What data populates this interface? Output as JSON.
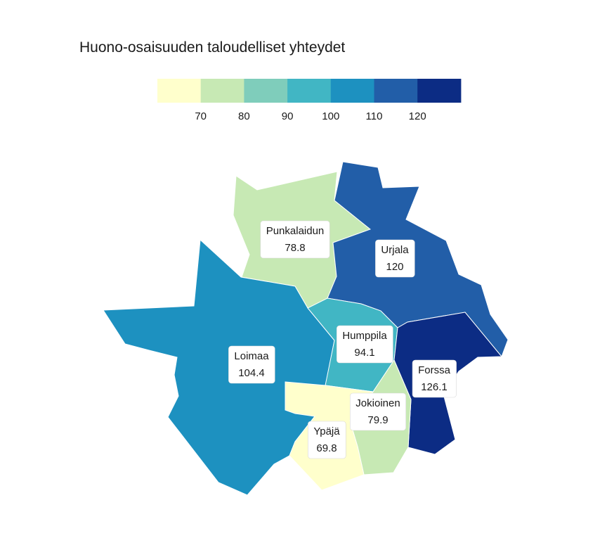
{
  "title": "Huono-osaisuuden taloudelliset yhteydet",
  "legend": {
    "bins": [
      {
        "color": "#ffffcc",
        "tick": ""
      },
      {
        "color": "#c7e9b4",
        "tick": "70"
      },
      {
        "color": "#7fcdbb",
        "tick": "80"
      },
      {
        "color": "#41b6c4",
        "tick": "90"
      },
      {
        "color": "#1d91c0",
        "tick": "100"
      },
      {
        "color": "#225ea8",
        "tick": "110"
      },
      {
        "color": "#0c2c84",
        "tick": "120"
      }
    ]
  },
  "regions": [
    {
      "name": "Punkalaidun",
      "value": "78.8",
      "color": "#c7e9b4"
    },
    {
      "name": "Urjala",
      "value": "120",
      "color": "#225ea8"
    },
    {
      "name": "Loimaa",
      "value": "104.4",
      "color": "#1d91c0"
    },
    {
      "name": "Humppila",
      "value": "94.1",
      "color": "#41b6c4"
    },
    {
      "name": "Forssa",
      "value": "126.1",
      "color": "#0c2c84"
    },
    {
      "name": "Jokioinen",
      "value": "79.9",
      "color": "#c7e9b4"
    },
    {
      "name": "Ypäjä",
      "value": "69.8",
      "color": "#ffffcc"
    }
  ]
}
